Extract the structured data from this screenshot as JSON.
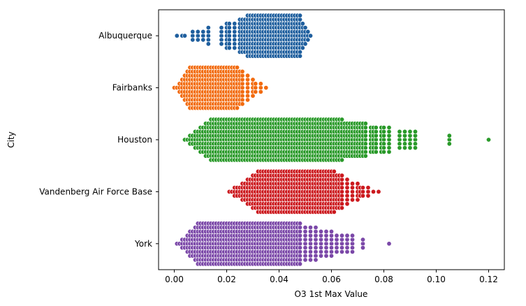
{
  "chart_data": {
    "type": "scatter",
    "subtype": "swarm",
    "title": "",
    "xlabel": "O3 1st Max Value",
    "ylabel": "City",
    "xlim": [
      -0.006,
      0.126
    ],
    "xticks": [
      0.0,
      0.02,
      0.04,
      0.06,
      0.08,
      0.1,
      0.12
    ],
    "xtick_labels": [
      "0.00",
      "0.02",
      "0.04",
      "0.06",
      "0.08",
      "0.10",
      "0.12"
    ],
    "grid": false,
    "legend": "none",
    "categories": [
      "Albuquerque",
      "Fairbanks",
      "Houston",
      "Vandenberg Air Force Base",
      "York"
    ],
    "series": [
      {
        "color": "#1f5f9e",
        "summary": {
          "min": 0.001,
          "dense_from": 0.03,
          "dense_to": 0.048,
          "max": 0.052
        },
        "values": [
          0.001,
          0.003,
          0.004,
          0.007,
          0.009,
          0.011,
          0.013,
          0.018,
          0.018,
          0.02,
          0.021,
          0.023,
          0.025,
          0.026,
          0.027,
          0.027,
          0.028,
          0.028,
          0.029,
          0.029,
          0.03,
          0.03,
          0.03,
          0.031,
          0.031,
          0.032,
          0.032,
          0.033,
          0.033,
          0.034,
          0.035,
          0.035,
          0.036,
          0.036,
          0.037,
          0.038,
          0.038,
          0.039,
          0.04,
          0.04,
          0.041,
          0.042,
          0.042,
          0.043,
          0.044,
          0.045,
          0.045,
          0.046,
          0.047,
          0.048,
          0.049,
          0.05,
          0.051,
          0.052
        ]
      },
      {
        "color": "#f26b0f",
        "summary": {
          "min": 0.0,
          "dense_from": 0.006,
          "dense_to": 0.024,
          "max": 0.035
        },
        "values": [
          0.0,
          0.001,
          0.002,
          0.003,
          0.004,
          0.005,
          0.006,
          0.006,
          0.007,
          0.008,
          0.008,
          0.009,
          0.01,
          0.01,
          0.011,
          0.012,
          0.012,
          0.013,
          0.014,
          0.014,
          0.015,
          0.016,
          0.016,
          0.017,
          0.018,
          0.019,
          0.02,
          0.02,
          0.021,
          0.022,
          0.022,
          0.023,
          0.024,
          0.025,
          0.026,
          0.028,
          0.03,
          0.031,
          0.033,
          0.035
        ]
      },
      {
        "color": "#2a9a2a",
        "summary": {
          "min": 0.004,
          "dense_from": 0.014,
          "dense_to": 0.06,
          "max": 0.12
        },
        "values": [
          0.004,
          0.005,
          0.006,
          0.007,
          0.008,
          0.009,
          0.01,
          0.011,
          0.012,
          0.013,
          0.014,
          0.014,
          0.015,
          0.016,
          0.017,
          0.018,
          0.019,
          0.02,
          0.021,
          0.022,
          0.023,
          0.024,
          0.025,
          0.026,
          0.027,
          0.028,
          0.029,
          0.03,
          0.031,
          0.032,
          0.033,
          0.034,
          0.035,
          0.036,
          0.037,
          0.038,
          0.039,
          0.04,
          0.041,
          0.042,
          0.043,
          0.044,
          0.045,
          0.046,
          0.047,
          0.048,
          0.049,
          0.05,
          0.051,
          0.052,
          0.053,
          0.054,
          0.055,
          0.056,
          0.057,
          0.058,
          0.059,
          0.06,
          0.061,
          0.062,
          0.063,
          0.064,
          0.065,
          0.066,
          0.067,
          0.068,
          0.069,
          0.07,
          0.071,
          0.072,
          0.073,
          0.075,
          0.076,
          0.077,
          0.079,
          0.08,
          0.082,
          0.086,
          0.088,
          0.09,
          0.092,
          0.105,
          0.12
        ]
      },
      {
        "color": "#cc1a1f",
        "summary": {
          "min": 0.021,
          "dense_from": 0.032,
          "dense_to": 0.06,
          "max": 0.078
        },
        "values": [
          0.021,
          0.022,
          0.023,
          0.024,
          0.025,
          0.026,
          0.027,
          0.028,
          0.029,
          0.03,
          0.031,
          0.032,
          0.033,
          0.034,
          0.035,
          0.036,
          0.037,
          0.038,
          0.039,
          0.04,
          0.041,
          0.042,
          0.043,
          0.044,
          0.045,
          0.046,
          0.047,
          0.048,
          0.049,
          0.05,
          0.051,
          0.052,
          0.053,
          0.054,
          0.055,
          0.056,
          0.057,
          0.058,
          0.059,
          0.06,
          0.061,
          0.062,
          0.063,
          0.064,
          0.066,
          0.068,
          0.07,
          0.071,
          0.072,
          0.074,
          0.076,
          0.078
        ]
      },
      {
        "color": "#7b48a8",
        "summary": {
          "min": 0.001,
          "dense_from": 0.009,
          "dense_to": 0.047,
          "max": 0.082
        },
        "values": [
          0.001,
          0.002,
          0.003,
          0.004,
          0.005,
          0.006,
          0.007,
          0.008,
          0.009,
          0.01,
          0.011,
          0.012,
          0.013,
          0.014,
          0.015,
          0.016,
          0.017,
          0.018,
          0.019,
          0.02,
          0.021,
          0.022,
          0.023,
          0.024,
          0.025,
          0.026,
          0.027,
          0.028,
          0.029,
          0.03,
          0.031,
          0.032,
          0.033,
          0.034,
          0.035,
          0.036,
          0.037,
          0.038,
          0.039,
          0.04,
          0.041,
          0.042,
          0.043,
          0.044,
          0.045,
          0.046,
          0.047,
          0.048,
          0.05,
          0.052,
          0.054,
          0.056,
          0.058,
          0.06,
          0.062,
          0.064,
          0.066,
          0.068,
          0.072,
          0.082
        ]
      }
    ]
  }
}
